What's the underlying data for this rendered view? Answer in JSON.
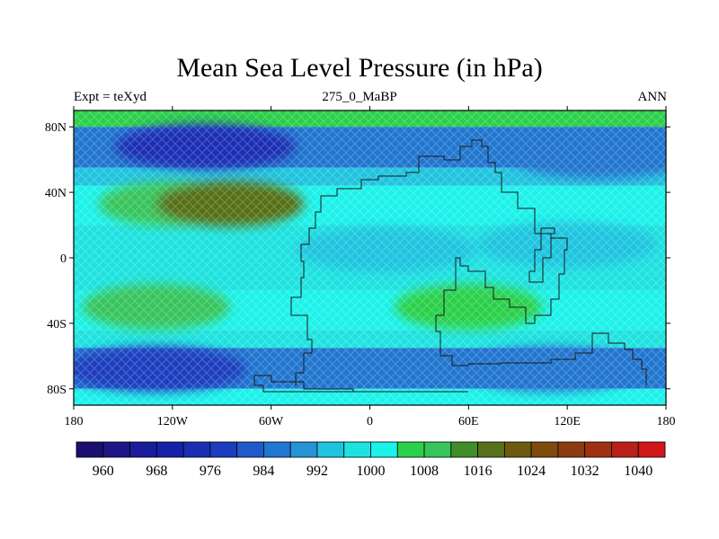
{
  "title": "Mean Sea Level Pressure (in hPa)",
  "subtitle_left": "Expt = teXyd",
  "subtitle_center": "275_0_MaBP",
  "subtitle_right": "ANN",
  "map": {
    "projection": "cylindrical-equidistant",
    "lon_range": [
      -180,
      180
    ],
    "lat_range": [
      -90,
      90
    ],
    "lon_ticks": [
      {
        "value": -180,
        "label": "180"
      },
      {
        "value": -120,
        "label": "120W"
      },
      {
        "value": -60,
        "label": "60W"
      },
      {
        "value": 0,
        "label": "0"
      },
      {
        "value": 60,
        "label": "60E"
      },
      {
        "value": 120,
        "label": "120E"
      },
      {
        "value": 180,
        "label": "180"
      }
    ],
    "lat_ticks": [
      {
        "value": 80,
        "label": "80N"
      },
      {
        "value": 40,
        "label": "40N"
      },
      {
        "value": 0,
        "label": "0"
      },
      {
        "value": -40,
        "label": "40S"
      },
      {
        "value": -80,
        "label": "80S"
      }
    ],
    "field_bands": [
      {
        "lat": [
          80,
          90
        ],
        "level": 1004
      },
      {
        "lat": [
          55,
          80
        ],
        "level": 984
      },
      {
        "lat": [
          44,
          55
        ],
        "level": 992
      },
      {
        "lat": [
          20,
          44
        ],
        "level": 1000
      },
      {
        "lat": [
          -20,
          20
        ],
        "level": 998
      },
      {
        "lat": [
          -44,
          -20
        ],
        "level": 1000
      },
      {
        "lat": [
          -55,
          -44
        ],
        "level": 996
      },
      {
        "lat": [
          -80,
          -55
        ],
        "level": 984
      },
      {
        "lat": [
          -90,
          -80
        ],
        "level": 1000
      }
    ],
    "highs": [
      {
        "lon": -120,
        "lat": 33,
        "level": 1008
      },
      {
        "lon": -85,
        "lat": 33,
        "level": 1016
      },
      {
        "lon": -130,
        "lat": -30,
        "level": 1008
      },
      {
        "lon": 60,
        "lat": -30,
        "level": 1004
      }
    ],
    "lows": [
      {
        "lon": -100,
        "lat": 68,
        "level": 972
      },
      {
        "lon": 140,
        "lat": 62,
        "level": 984
      },
      {
        "lon": -130,
        "lat": -68,
        "level": 976
      },
      {
        "lon": 110,
        "lat": -68,
        "level": 984
      },
      {
        "lon": 10,
        "lat": 5,
        "level": 992
      },
      {
        "lon": 120,
        "lat": 8,
        "level": 992
      }
    ],
    "coastline": [
      [
        [
          -45,
          -78
        ],
        [
          -45,
          -70
        ],
        [
          -40,
          -58
        ],
        [
          -35,
          -50
        ],
        [
          -38,
          -35
        ],
        [
          -48,
          -24
        ],
        [
          -42,
          -12
        ],
        [
          -40,
          -2
        ],
        [
          -42,
          8
        ],
        [
          -37,
          18
        ],
        [
          -33,
          28
        ],
        [
          -30,
          38
        ],
        [
          -20,
          42
        ],
        [
          -5,
          48
        ],
        [
          5,
          50
        ],
        [
          22,
          52
        ],
        [
          30,
          62
        ],
        [
          45,
          60
        ],
        [
          55,
          68
        ],
        [
          62,
          72
        ],
        [
          68,
          68
        ],
        [
          72,
          58
        ],
        [
          76,
          52
        ],
        [
          80,
          40
        ],
        [
          90,
          30
        ],
        [
          100,
          30
        ],
        [
          100,
          15
        ],
        [
          110,
          12
        ],
        [
          120,
          5
        ],
        [
          118,
          -10
        ],
        [
          115,
          -25
        ],
        [
          110,
          -35
        ],
        [
          100,
          -40
        ],
        [
          95,
          -30
        ],
        [
          85,
          -25
        ],
        [
          75,
          -18
        ],
        [
          70,
          -8
        ],
        [
          60,
          -5
        ],
        [
          55,
          0
        ],
        [
          52,
          -20
        ],
        [
          45,
          -35
        ],
        [
          40,
          -45
        ],
        [
          43,
          -60
        ],
        [
          50,
          -66
        ],
        [
          60,
          -65
        ],
        [
          80,
          -64
        ],
        [
          110,
          -62
        ],
        [
          125,
          -58
        ],
        [
          135,
          -46
        ],
        [
          145,
          -52
        ],
        [
          155,
          -56
        ],
        [
          160,
          -62
        ],
        [
          165,
          -68
        ],
        [
          168,
          -78
        ]
      ],
      [
        [
          -70,
          -78
        ],
        [
          -65,
          -82
        ],
        [
          -30,
          -82
        ],
        [
          10,
          -82
        ],
        [
          60,
          -82
        ],
        [
          -10,
          -80
        ],
        [
          -40,
          -76
        ],
        [
          -60,
          -72
        ],
        [
          -70,
          -78
        ]
      ],
      [
        [
          97,
          -8
        ],
        [
          100,
          5
        ],
        [
          104,
          18
        ],
        [
          112,
          15
        ],
        [
          110,
          0
        ],
        [
          105,
          -15
        ],
        [
          97,
          -8
        ]
      ]
    ]
  },
  "colorbar": {
    "levels": [
      956,
      960,
      964,
      968,
      972,
      976,
      980,
      984,
      988,
      992,
      996,
      1000,
      1004,
      1008,
      1012,
      1016,
      1020,
      1024,
      1028,
      1032,
      1036,
      1040,
      1044
    ],
    "colors": [
      "#1a0f6e",
      "#1c1687",
      "#191c9a",
      "#1522a8",
      "#1a2eb4",
      "#1c3dbe",
      "#1e5ac9",
      "#2176cf",
      "#2693d6",
      "#1fc4df",
      "#1de3e0",
      "#1bf2ea",
      "#2bd04a",
      "#37c45b",
      "#3f8e2a",
      "#577019",
      "#6c5a10",
      "#7f4a0e",
      "#8c3a10",
      "#a03013",
      "#b8211a",
      "#d0171a"
    ],
    "labels": [
      "960",
      "968",
      "976",
      "984",
      "992",
      "1000",
      "1008",
      "1016",
      "1024",
      "1032",
      "1040"
    ],
    "label_levels": [
      960,
      968,
      976,
      984,
      992,
      1000,
      1008,
      1016,
      1024,
      1032,
      1040
    ]
  }
}
